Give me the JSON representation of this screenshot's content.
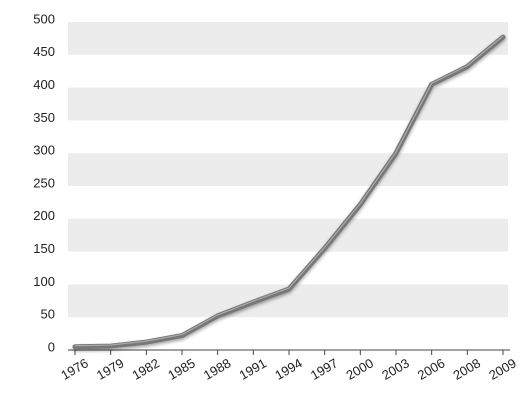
{
  "chart_data": {
    "type": "line",
    "categories": [
      "1976",
      "1979",
      "1982",
      "1985",
      "1988",
      "1991",
      "1994",
      "1997",
      "2000",
      "2003",
      "2006",
      "2008",
      "2009"
    ],
    "values": [
      5,
      6,
      12,
      22,
      52,
      73,
      93,
      155,
      222,
      300,
      405,
      432,
      477
    ],
    "color": "#777777",
    "ylim": [
      0,
      500
    ],
    "yticks": [
      0,
      50,
      100,
      150,
      200,
      250,
      300,
      350,
      400,
      450,
      500
    ],
    "grid": "bands"
  }
}
